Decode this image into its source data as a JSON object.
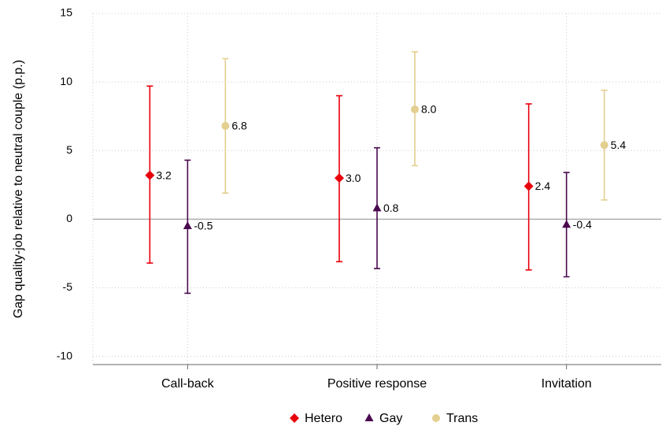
{
  "chart_data": {
    "type": "errorbar",
    "y_label": "Gap quality-job relative to neutral couple (p.p.)",
    "categories": [
      "Call-back",
      "Positive response",
      "Invitation"
    ],
    "series": [
      {
        "name": "Hetero",
        "color": "#e8000b",
        "marker": "diamond",
        "values": [
          3.2,
          3.0,
          2.4
        ],
        "value_labels": [
          "3.2",
          "3.0",
          "2.4"
        ],
        "lower": [
          -3.2,
          -3.1,
          -3.7
        ],
        "upper": [
          9.7,
          9.0,
          8.4
        ]
      },
      {
        "name": "Gay",
        "color": "#4b0a4f",
        "marker": "triangle",
        "values": [
          -0.5,
          0.8,
          -0.4
        ],
        "value_labels": [
          "-0.5",
          "0.8",
          "-0.4"
        ],
        "lower": [
          -5.4,
          -3.6,
          -4.2
        ],
        "upper": [
          4.3,
          5.2,
          3.4
        ]
      },
      {
        "name": "Trans",
        "color": "#e3cf8f",
        "marker": "circle",
        "values": [
          6.8,
          8.0,
          5.4
        ],
        "value_labels": [
          "6.8",
          "8.0",
          "5.4"
        ],
        "lower": [
          1.9,
          3.9,
          1.4
        ],
        "upper": [
          11.7,
          12.2,
          9.4
        ]
      }
    ],
    "ylim": [
      -10.6,
      15
    ],
    "yticks": [
      -10,
      -5,
      0,
      5,
      10,
      15
    ],
    "grid": true,
    "legend": "bottom"
  }
}
